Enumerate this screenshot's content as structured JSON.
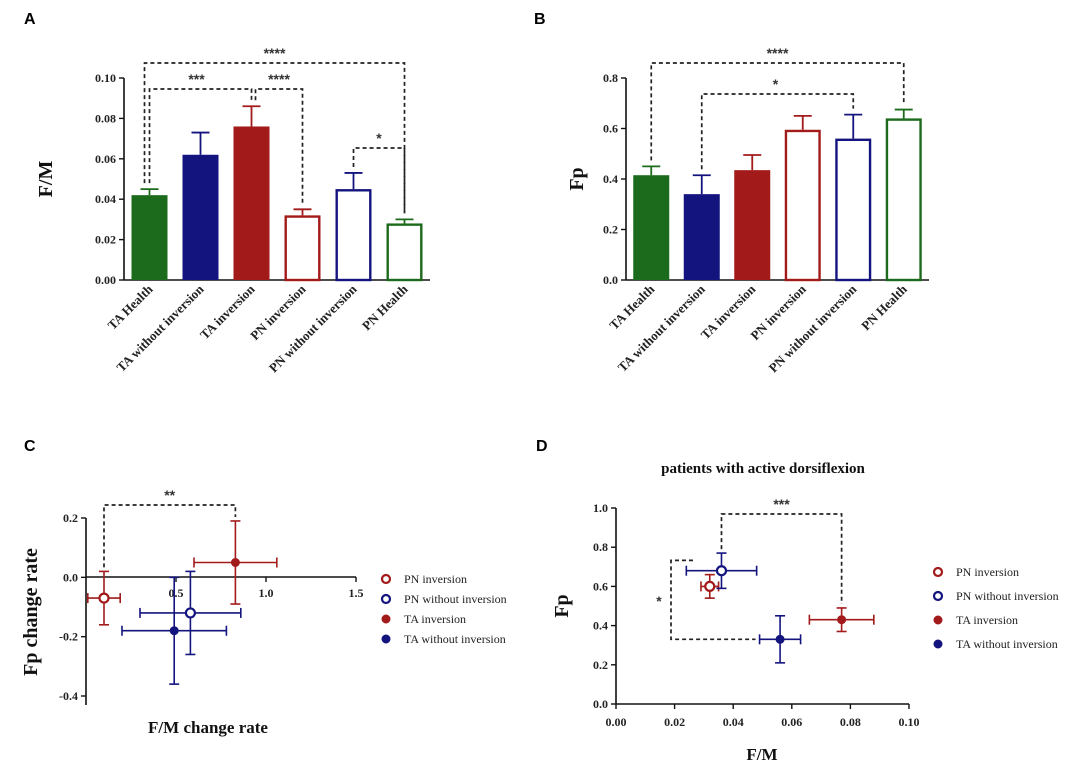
{
  "colors": {
    "green": "#1c6b1c",
    "navy": "#14147f",
    "red": "#a21a1a"
  },
  "chart_data": [
    {
      "panel": "A",
      "type": "bar",
      "ylabel": "F/M",
      "ylim": [
        0,
        0.1
      ],
      "yticks": [
        "0.00",
        "0.02",
        "0.04",
        "0.06",
        "0.08",
        "0.10"
      ],
      "categories": [
        "TA Health",
        "TA without inversion",
        "TA inversion",
        "PN inversion",
        "PN without inversion",
        "PN Health"
      ],
      "values": [
        0.042,
        0.062,
        0.076,
        0.032,
        0.045,
        0.028
      ],
      "errors": [
        0.003,
        0.011,
        0.01,
        0.003,
        0.008,
        0.002
      ],
      "filled": [
        true,
        true,
        true,
        false,
        false,
        false
      ],
      "color_keys": [
        "green",
        "navy",
        "red",
        "red",
        "navy",
        "green"
      ],
      "significance": [
        {
          "from": 0,
          "to": 5,
          "label": "****"
        },
        {
          "from": 0,
          "to": 2,
          "label": "***"
        },
        {
          "from": 2,
          "to": 3,
          "label": "****"
        },
        {
          "from": 4,
          "to": 5,
          "label": "*"
        }
      ]
    },
    {
      "panel": "B",
      "type": "bar",
      "ylabel": "Fp",
      "ylim": [
        0,
        0.8
      ],
      "yticks": [
        "0.0",
        "0.2",
        "0.4",
        "0.6",
        "0.8"
      ],
      "categories": [
        "TA Health",
        "TA without inversion",
        "TA inversion",
        "PN inversion",
        "PN without inversion",
        "PN Health"
      ],
      "values": [
        0.415,
        0.34,
        0.435,
        0.595,
        0.56,
        0.64
      ],
      "errors": [
        0.035,
        0.075,
        0.06,
        0.055,
        0.095,
        0.035
      ],
      "filled": [
        true,
        true,
        true,
        false,
        false,
        false
      ],
      "color_keys": [
        "green",
        "navy",
        "red",
        "red",
        "navy",
        "green"
      ],
      "significance": [
        {
          "from": 0,
          "to": 5,
          "label": "****"
        },
        {
          "from": 1,
          "to": 4,
          "label": "*"
        }
      ]
    },
    {
      "panel": "C",
      "type": "scatter",
      "xlabel": "F/M change rate",
      "ylabel": "Fp change rate",
      "xlim": [
        0,
        1.5
      ],
      "ylim": [
        -0.4,
        0.2
      ],
      "xticks": [
        "0.5",
        "1.0",
        "1.5"
      ],
      "yticks": [
        "-0.4",
        "-0.2",
        "0.0",
        "0.2"
      ],
      "series": [
        {
          "name": "PN inversion",
          "x": 0.1,
          "y": -0.07,
          "xerr": 0.09,
          "yerr": 0.09,
          "filled": false,
          "color_key": "red"
        },
        {
          "name": "PN without inversion",
          "x": 0.58,
          "y": -0.12,
          "xerr": 0.28,
          "yerr": 0.14,
          "filled": false,
          "color_key": "navy"
        },
        {
          "name": "TA inversion",
          "x": 0.83,
          "y": 0.05,
          "xerr": 0.23,
          "yerr": 0.14,
          "filled": true,
          "color_key": "red"
        },
        {
          "name": "TA without inversion",
          "x": 0.49,
          "y": -0.18,
          "xerr": 0.29,
          "yerr": 0.18,
          "filled": true,
          "color_key": "navy"
        }
      ],
      "significance": [
        {
          "from": 0,
          "to": 2,
          "label": "**"
        }
      ]
    },
    {
      "panel": "D",
      "type": "scatter",
      "title": "patients with active dorsiflexion",
      "xlabel": "F/M",
      "ylabel": "Fp",
      "xlim": [
        0,
        0.1
      ],
      "ylim": [
        0,
        1.0
      ],
      "xticks": [
        "0.00",
        "0.02",
        "0.04",
        "0.06",
        "0.08",
        "0.10"
      ],
      "yticks": [
        "0.0",
        "0.2",
        "0.4",
        "0.6",
        "0.8",
        "1.0"
      ],
      "series": [
        {
          "name": "PN inversion",
          "x": 0.032,
          "y": 0.6,
          "xerr": 0.003,
          "yerr": 0.06,
          "filled": false,
          "color_key": "red"
        },
        {
          "name": "PN without inversion",
          "x": 0.036,
          "y": 0.68,
          "xerr": 0.012,
          "yerr": 0.09,
          "filled": false,
          "color_key": "navy"
        },
        {
          "name": "TA inversion",
          "x": 0.077,
          "y": 0.43,
          "xerr": 0.011,
          "yerr": 0.06,
          "filled": true,
          "color_key": "red"
        },
        {
          "name": "TA without inversion",
          "x": 0.056,
          "y": 0.33,
          "xerr": 0.007,
          "yerr": 0.12,
          "filled": true,
          "color_key": "navy"
        }
      ],
      "significance": [
        {
          "from": 1,
          "to": 2,
          "label": "***"
        },
        {
          "from": 0,
          "to": 3,
          "label": "*"
        }
      ]
    }
  ]
}
